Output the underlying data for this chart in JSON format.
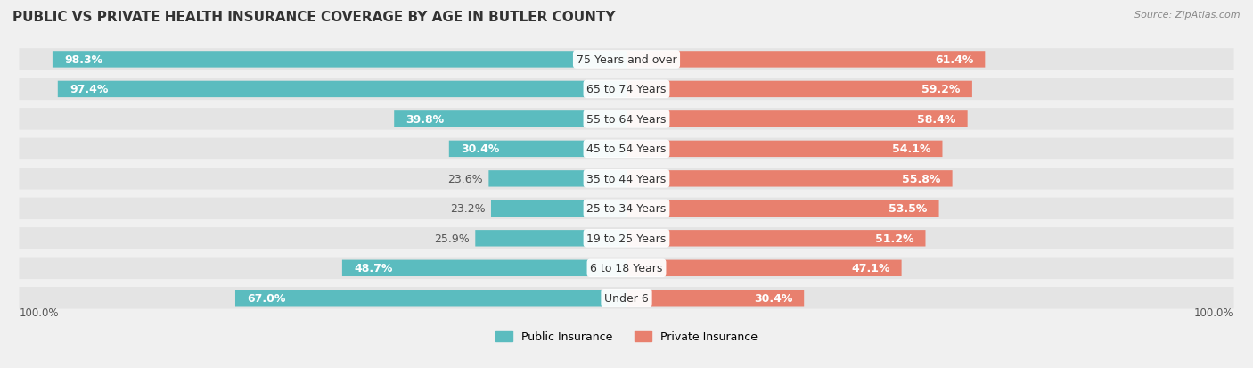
{
  "title": "PUBLIC VS PRIVATE HEALTH INSURANCE COVERAGE BY AGE IN BUTLER COUNTY",
  "source": "Source: ZipAtlas.com",
  "categories": [
    "Under 6",
    "6 to 18 Years",
    "19 to 25 Years",
    "25 to 34 Years",
    "35 to 44 Years",
    "45 to 54 Years",
    "55 to 64 Years",
    "65 to 74 Years",
    "75 Years and over"
  ],
  "public_values": [
    67.0,
    48.7,
    25.9,
    23.2,
    23.6,
    30.4,
    39.8,
    97.4,
    98.3
  ],
  "private_values": [
    30.4,
    47.1,
    51.2,
    53.5,
    55.8,
    54.1,
    58.4,
    59.2,
    61.4
  ],
  "public_color": "#5bbcbf",
  "private_color": "#e8806e",
  "bg_color": "#f0f0f0",
  "bar_bg_color": "#e8e8e8",
  "label_bg_color": "#ffffff",
  "title_color": "#333333",
  "label_fontsize": 9,
  "title_fontsize": 11,
  "bar_height": 0.55,
  "legend_labels": [
    "Public Insurance",
    "Private Insurance"
  ]
}
